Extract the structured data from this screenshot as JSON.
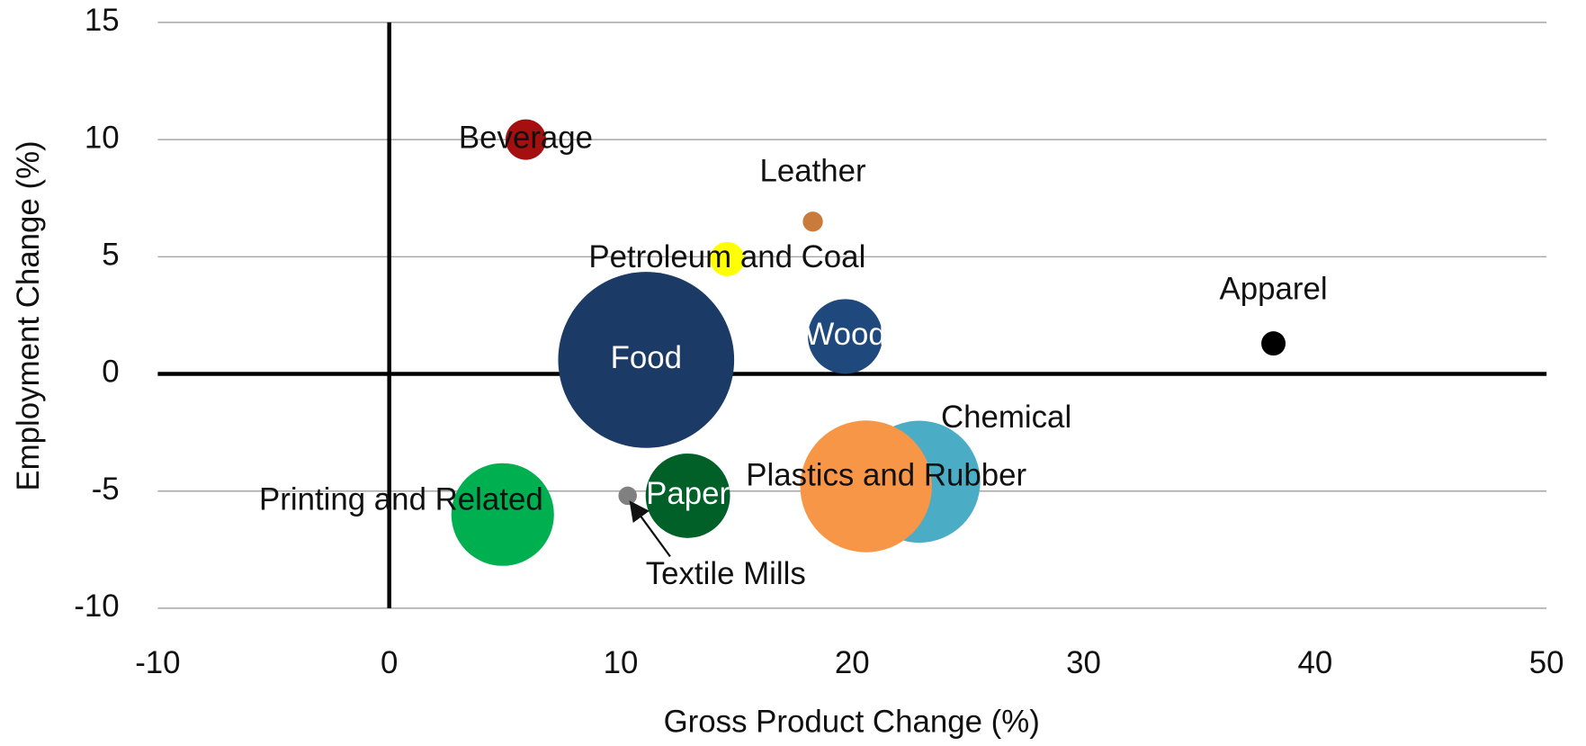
{
  "chart_data": {
    "type": "bubble",
    "x_label": "Gross Product Change (%)",
    "y_label": "Employment Change (%)",
    "xlim": [
      -10,
      50
    ],
    "xticks": [
      -10,
      0,
      10,
      20,
      30,
      40,
      50
    ],
    "ylim": [
      -10,
      15
    ],
    "yticks": [
      -10,
      -5,
      0,
      5,
      10,
      15
    ],
    "grid": true,
    "series": [
      {
        "name": "Beverage",
        "color": "#a50f0f",
        "x": 5.9,
        "y": 10,
        "size": 5.3
      },
      {
        "name": "Leather",
        "color": "#c87b3a",
        "x": 18.3,
        "y": 6.5,
        "size": 1.3
      },
      {
        "name": "Petroleum and Coal",
        "color": "#ffff00",
        "x": 14.6,
        "y": 4.9,
        "size": 3.8
      },
      {
        "name": "Food",
        "color": "#1b3a66",
        "x": 11.1,
        "y": 0.6,
        "size": 100
      },
      {
        "name": "Wood",
        "color": "#1f497d",
        "x": 19.7,
        "y": 1.6,
        "size": 18
      },
      {
        "name": "Apparel",
        "color": "#000000",
        "x": 38.2,
        "y": 1.3,
        "size": 1.9
      },
      {
        "name": "Chemical",
        "color": "#4bacc6",
        "x": 22.9,
        "y": -4.6,
        "size": 48
      },
      {
        "name": "Plastics and Rubber",
        "color": "#f79646",
        "x": 20.6,
        "y": -4.8,
        "size": 56
      },
      {
        "name": "Printing and Related",
        "color": "#00b050",
        "x": 4.9,
        "y": -6,
        "size": 34
      },
      {
        "name": "Paper",
        "color": "#006028",
        "x": 12.9,
        "y": -5.2,
        "size": 23
      },
      {
        "name": "Textile Mills",
        "color": "#808080",
        "x": 10.3,
        "y": -5.2,
        "size": 1.1
      }
    ]
  }
}
